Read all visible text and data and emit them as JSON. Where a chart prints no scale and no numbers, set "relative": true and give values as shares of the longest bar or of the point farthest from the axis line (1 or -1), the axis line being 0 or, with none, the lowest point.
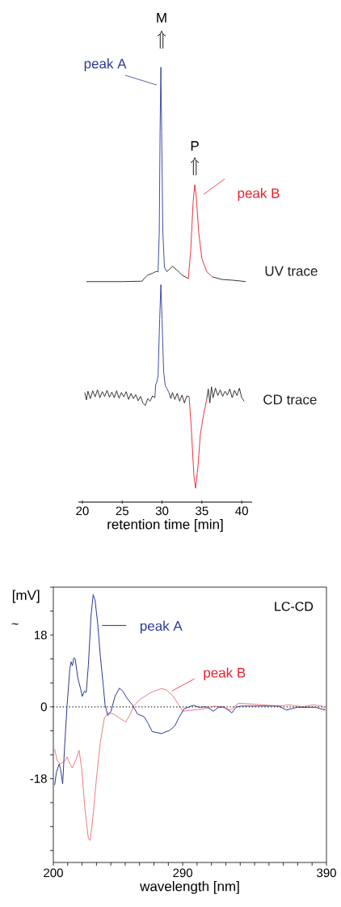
{
  "chart_data": [
    {
      "type": "line",
      "relative": true,
      "xlabel": "retention time [min]",
      "xlim": [
        19.5,
        41.3
      ],
      "xticks": [
        20,
        25,
        30,
        35,
        40
      ],
      "annotations": [
        "M",
        "P"
      ],
      "series": [
        {
          "color": "#231f20",
          "x": [
            20.5,
            25,
            27.5,
            27.8,
            28.2,
            28.8,
            29.2,
            29.5
          ],
          "values": [
            0.507,
            0.507,
            0.508,
            0.515,
            0.522,
            0.526,
            0.53,
            0.53
          ]
        },
        {
          "name": "peak A",
          "color": "#2b3a9a",
          "x": [
            29.5,
            29.65,
            29.75,
            29.85,
            29.95,
            30.1,
            30.3,
            30.6
          ],
          "values": [
            0.53,
            0.62,
            0.85,
            1.0,
            0.85,
            0.62,
            0.54,
            0.53
          ]
        },
        {
          "color": "#231f20",
          "x": [
            30.6,
            30.9,
            31.3,
            31.8,
            32.5,
            33.3
          ],
          "values": [
            0.53,
            0.535,
            0.542,
            0.535,
            0.522,
            0.514
          ]
        },
        {
          "name": "peak B",
          "color": "#e8202a",
          "x": [
            33.3,
            33.6,
            33.9,
            34.1,
            34.3,
            34.6,
            35.0,
            35.6,
            36.3
          ],
          "values": [
            0.514,
            0.58,
            0.69,
            0.73,
            0.7,
            0.62,
            0.56,
            0.53,
            0.518
          ]
        },
        {
          "name": "UV trace",
          "color": "#231f20",
          "x": [
            36.3,
            37.5,
            39,
            40.5
          ],
          "values": [
            0.518,
            0.512,
            0.51,
            0.507
          ]
        },
        {
          "color": "#231f20",
          "x": [
            20.3,
            20.5,
            20.7,
            21.0,
            21.3,
            21.6,
            21.9,
            22.2,
            22.5,
            22.8,
            23.1,
            23.4,
            23.7,
            24.0,
            24.3,
            24.6,
            24.9,
            25.2,
            25.5,
            25.8,
            26.1,
            26.4,
            26.7,
            27.0,
            27.3,
            27.6,
            27.9,
            28.2,
            28.5,
            28.8,
            29.1
          ],
          "values": [
            0.252,
            0.235,
            0.255,
            0.238,
            0.256,
            0.242,
            0.258,
            0.24,
            0.254,
            0.243,
            0.257,
            0.241,
            0.253,
            0.24,
            0.256,
            0.239,
            0.252,
            0.242,
            0.254,
            0.236,
            0.25,
            0.238,
            0.247,
            0.233,
            0.243,
            0.228,
            0.222,
            0.238,
            0.232,
            0.244,
            0.24
          ]
        },
        {
          "color": "#2b3a9a",
          "x": [
            29.1,
            29.2,
            29.35,
            29.5,
            29.7,
            29.85,
            30.0,
            30.2,
            30.4,
            30.6,
            30.9
          ],
          "values": [
            0.24,
            0.27,
            0.276,
            0.29,
            0.42,
            0.5,
            0.42,
            0.3,
            0.268,
            0.262,
            0.25
          ]
        },
        {
          "color": "#231f20",
          "x": [
            30.9,
            31.1,
            31.3,
            31.6,
            31.9,
            32.2,
            32.5,
            32.8,
            33.1,
            33.4
          ],
          "values": [
            0.25,
            0.238,
            0.252,
            0.236,
            0.25,
            0.232,
            0.246,
            0.228,
            0.244,
            0.242
          ]
        },
        {
          "color": "#e8202a",
          "x": [
            33.4,
            33.7,
            34.0,
            34.2,
            34.5,
            34.8,
            35.2,
            35.6
          ],
          "values": [
            0.242,
            0.16,
            0.06,
            0.032,
            0.08,
            0.155,
            0.2,
            0.236
          ]
        },
        {
          "name": "CD trace",
          "color": "#231f20",
          "x": [
            35.6,
            35.8,
            36.0,
            36.2,
            36.4,
            36.7,
            37.0,
            37.3,
            37.6,
            37.9,
            38.2,
            38.5,
            38.8,
            39.1,
            39.4,
            39.7,
            40.0,
            40.3
          ],
          "values": [
            0.236,
            0.26,
            0.228,
            0.265,
            0.24,
            0.262,
            0.245,
            0.258,
            0.243,
            0.255,
            0.246,
            0.26,
            0.24,
            0.257,
            0.245,
            0.262,
            0.24,
            0.232
          ]
        }
      ]
    },
    {
      "type": "line",
      "xlabel": "wavelength [nm]",
      "ylabel": "[mV]",
      "annotations": [
        "LC-CD",
        "~"
      ],
      "xlim": [
        200,
        390
      ],
      "ylim": [
        -39,
        30
      ],
      "xticks": [
        200,
        {
          "value": 210,
          "label": null
        },
        {
          "value": 220,
          "label": null
        },
        {
          "value": 230,
          "label": null
        },
        {
          "value": 240,
          "label": null
        },
        {
          "value": 250,
          "label": null
        },
        {
          "value": 260,
          "label": null
        },
        {
          "value": 270,
          "label": null
        },
        {
          "value": 280,
          "label": null
        },
        290,
        {
          "value": 300,
          "label": null
        },
        {
          "value": 310,
          "label": null
        },
        {
          "value": 320,
          "label": null
        },
        {
          "value": 330,
          "label": null
        },
        {
          "value": 340,
          "label": null
        },
        {
          "value": 350,
          "label": null
        },
        {
          "value": 360,
          "label": null
        },
        {
          "value": 370,
          "label": null
        },
        {
          "value": 380,
          "label": null
        },
        390
      ],
      "yticks": [
        {
          "value": -36,
          "label": null
        },
        {
          "value": -30,
          "label": null
        },
        {
          "value": -24,
          "label": null
        },
        -18,
        {
          "value": -12,
          "label": null
        },
        {
          "value": -6,
          "label": null
        },
        0,
        {
          "value": 6,
          "label": null
        },
        {
          "value": 12,
          "label": null
        },
        18,
        {
          "value": 24,
          "label": null
        },
        {
          "value": 30,
          "label": null
        }
      ],
      "ref_lines": [
        {
          "axis": "y",
          "value": 0,
          "color": "#231f20",
          "line_style": "dotted"
        }
      ],
      "series": [
        {
          "name": "peak A",
          "color": "#2b3a9a",
          "x": [
            200.9,
            202.2,
            204.1,
            205,
            206.5,
            207.8,
            209.6,
            211.5,
            212.4,
            213.3,
            214.2,
            215.2,
            217,
            218.9,
            220.1,
            221.6,
            222.9,
            224.4,
            226.2,
            227.7,
            229,
            230.9,
            232.7,
            234.6,
            236,
            237.9,
            240.1,
            242.9,
            246,
            248.4,
            251.2,
            254.9,
            258.6,
            263.2,
            266,
            268.8,
            275.2,
            280.8,
            284.5,
            287.2,
            290.9,
            297.4,
            301.1,
            306.7,
            311.3,
            315,
            318.7,
            324.2,
            327,
            330.7,
            338.1,
            345.5,
            356.6,
            362.1,
            369.5,
            382.4,
            388.9
          ],
          "values": [
            -19.6,
            -16.3,
            -14.3,
            -15.6,
            -19.3,
            -10.2,
            0.5,
            9.6,
            11.3,
            10.3,
            12.3,
            12.0,
            7.3,
            4.6,
            2.6,
            3.9,
            3.6,
            10.6,
            22.7,
            28.1,
            26.8,
            20.7,
            12.7,
            5.9,
            0.5,
            -2.2,
            -1.1,
            2.6,
            4.7,
            3.9,
            2.2,
            0.5,
            -1.8,
            -2.5,
            -4.2,
            -6.2,
            -6.7,
            -5.9,
            -4.8,
            -2.8,
            -0.5,
            0.4,
            -0.1,
            0,
            -1.1,
            -0.1,
            0,
            -1.5,
            -0.1,
            0.2,
            0.2,
            0.2,
            0.2,
            -0.8,
            -0.1,
            -0.1,
            -0.8
          ]
        },
        {
          "name": "peak B",
          "color": "#e8202a",
          "x": [
            200.9,
            202.8,
            205,
            207.8,
            209.6,
            211.5,
            213.3,
            216.1,
            217.9,
            219.8,
            222,
            224.4,
            225.7,
            227.5,
            229.9,
            232.7,
            235.5,
            238.3,
            241.9,
            246,
            250.3,
            253,
            255.8,
            260.4,
            267.8,
            275.2,
            278.9,
            283.5,
            290,
            297.4,
            304.8,
            312.2,
            317.7,
            323.3,
            328.8,
            338.1,
            345.5,
            356.6,
            364,
            373.2,
            380.6,
            387.1,
            389.3
          ],
          "values": [
            -10.6,
            -13.6,
            -14.3,
            -13.6,
            -12.6,
            -14.3,
            -15.3,
            -12.9,
            -10.9,
            -15.6,
            -25.7,
            -33.1,
            -33.4,
            -27.7,
            -18.3,
            -8.9,
            -2.8,
            -1.5,
            -1.8,
            -2.8,
            -3.8,
            -2.2,
            0.2,
            1.9,
            3.6,
            4.6,
            4.2,
            2.6,
            -1.1,
            -0.8,
            -0.5,
            0.2,
            -0.1,
            -0.8,
            0.9,
            0.7,
            0.5,
            0.2,
            0.5,
            0,
            0.5,
            0.2,
            -0.8
          ]
        }
      ]
    }
  ]
}
